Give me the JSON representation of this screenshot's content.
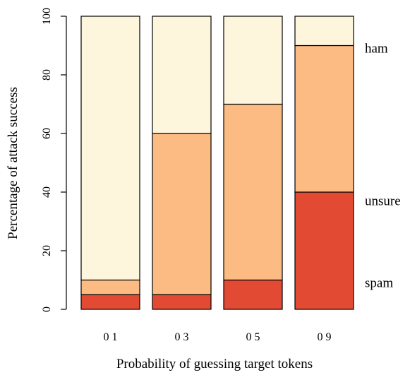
{
  "chart_data": {
    "type": "bar",
    "stacked": true,
    "categories": [
      "0 1",
      "0 3",
      "0 5",
      "0 9"
    ],
    "series": [
      {
        "name": "spam",
        "values": [
          5,
          5,
          10,
          40
        ],
        "color": "#e34a33"
      },
      {
        "name": "unsure",
        "values": [
          5,
          55,
          60,
          50
        ],
        "color": "#fdbb84"
      },
      {
        "name": "ham",
        "values": [
          90,
          40,
          30,
          10
        ],
        "color": "#fef6dc"
      }
    ],
    "xlabel": "Probability of guessing target tokens",
    "ylabel": "Percentage of attack success",
    "ylim": [
      0,
      100
    ],
    "yticks": [
      0,
      20,
      40,
      60,
      80,
      100
    ],
    "grid": false,
    "legend": "right, labels beside stacked segments"
  }
}
